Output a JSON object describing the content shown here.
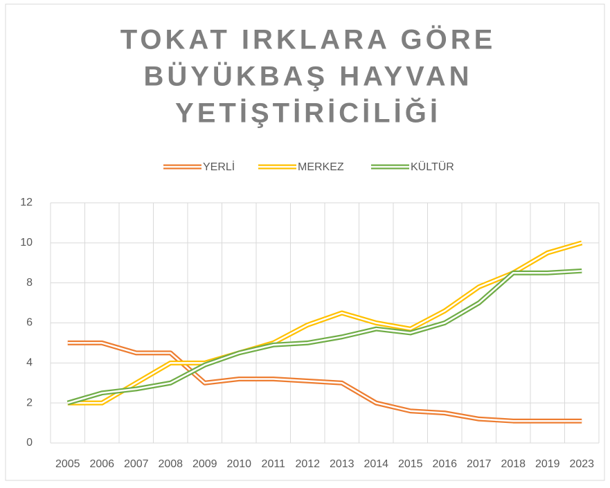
{
  "chart_data": {
    "type": "line",
    "title": [
      "TOKAT  IRKLARA GÖRE",
      "BÜYÜKBAŞ HAYVAN",
      "YETİŞTİRİCİLİĞİ"
    ],
    "categories": [
      "2005",
      "2006",
      "2007",
      "2008",
      "2009",
      "2010",
      "2011",
      "2012",
      "2013",
      "2014",
      "2015",
      "2016",
      "2017",
      "2018",
      "2019",
      "2023"
    ],
    "series": [
      {
        "name": "YERLİ",
        "color": "#ed7d31",
        "values": [
          5.0,
          5.0,
          4.5,
          4.5,
          3.0,
          3.2,
          3.2,
          3.1,
          3.0,
          2.0,
          1.6,
          1.5,
          1.2,
          1.1,
          1.1,
          1.1
        ]
      },
      {
        "name": "MERKEZ",
        "color": "#ffc000",
        "values": [
          2.0,
          2.0,
          3.0,
          4.0,
          4.0,
          4.5,
          5.0,
          5.9,
          6.5,
          6.0,
          5.7,
          6.6,
          7.8,
          8.5,
          9.5,
          10.0
        ]
      },
      {
        "name": "KÜLTÜR",
        "color": "#70ad47",
        "values": [
          2.0,
          2.5,
          2.7,
          3.0,
          3.9,
          4.5,
          4.9,
          5.0,
          5.3,
          5.7,
          5.5,
          6.0,
          7.0,
          8.5,
          8.5,
          8.6
        ]
      }
    ],
    "ylim": [
      0,
      12
    ],
    "yticks": [
      0,
      2,
      4,
      6,
      8,
      10,
      12
    ],
    "grid": true,
    "legend": "top"
  }
}
